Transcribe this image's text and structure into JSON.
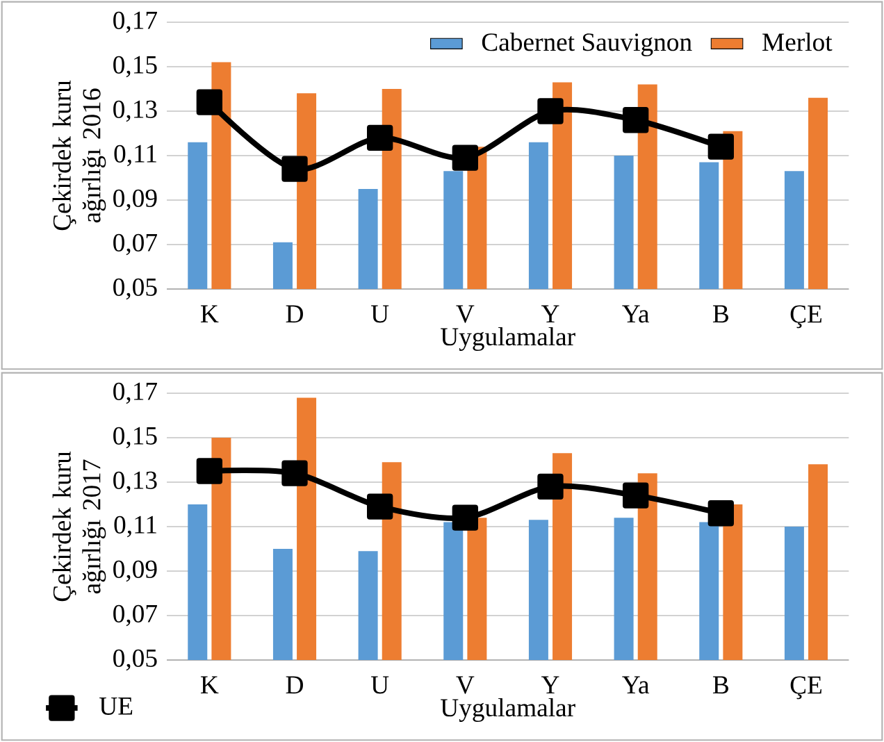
{
  "chart_data": [
    {
      "type": "bar",
      "xlabel": "Uygulamalar",
      "ylabel": "Çekirdek kuru ağırlığı 2016",
      "categories": [
        "K",
        "D",
        "U",
        "V",
        "Y",
        "Ya",
        "B",
        "ÇE"
      ],
      "series": [
        {
          "name": "Cabernet Sauvignon",
          "color": "#5b9bd5",
          "values": [
            0.116,
            0.071,
            0.095,
            0.103,
            0.116,
            0.11,
            0.107,
            0.103
          ]
        },
        {
          "name": "Merlot",
          "color": "#ed7d31",
          "values": [
            0.152,
            0.138,
            0.14,
            0.114,
            0.143,
            0.142,
            0.121,
            0.136
          ]
        },
        {
          "type": "line",
          "marker": "square",
          "color": "#000000",
          "values": [
            0.134,
            0.104,
            0.118,
            0.109,
            0.13,
            0.126,
            0.114,
            null
          ]
        }
      ],
      "ylim": [
        0.05,
        0.17
      ],
      "yticks": [
        {
          "value": 0.05,
          "label": "0,05"
        },
        {
          "value": 0.07,
          "label": "0,07"
        },
        {
          "value": 0.09,
          "label": "0,09"
        },
        {
          "value": 0.11,
          "label": "0,11"
        },
        {
          "value": 0.13,
          "label": "0,13"
        },
        {
          "value": 0.15,
          "label": "0,15"
        },
        {
          "value": 0.17,
          "label": "0,17"
        }
      ],
      "grid": "y",
      "legend": "top right"
    },
    {
      "type": "bar",
      "xlabel": "Uygulamalar",
      "ylabel": "Çekirdek kuru ağırlığı 2017",
      "categories": [
        "K",
        "D",
        "U",
        "V",
        "Y",
        "Ya",
        "B",
        "ÇE"
      ],
      "series": [
        {
          "color": "#5b9bd5",
          "values": [
            0.12,
            0.1,
            0.099,
            0.112,
            0.113,
            0.114,
            0.112,
            0.11
          ]
        },
        {
          "color": "#ed7d31",
          "values": [
            0.15,
            0.168,
            0.139,
            0.114,
            0.143,
            0.134,
            0.12,
            0.138
          ]
        },
        {
          "name": "UE",
          "type": "line",
          "marker": "square",
          "color": "#000000",
          "values": [
            0.135,
            0.134,
            0.119,
            0.114,
            0.128,
            0.124,
            0.116,
            null
          ]
        }
      ],
      "ylim": [
        0.05,
        0.17
      ],
      "yticks": [
        {
          "value": 0.05,
          "label": "0,05"
        },
        {
          "value": 0.07,
          "label": "0,07"
        },
        {
          "value": 0.09,
          "label": "0,09"
        },
        {
          "value": 0.11,
          "label": "0,11"
        },
        {
          "value": 0.13,
          "label": "0,13"
        },
        {
          "value": 0.15,
          "label": "0,15"
        },
        {
          "value": 0.17,
          "label": "0,17"
        }
      ],
      "grid": "y",
      "legend": "bottom left"
    }
  ]
}
